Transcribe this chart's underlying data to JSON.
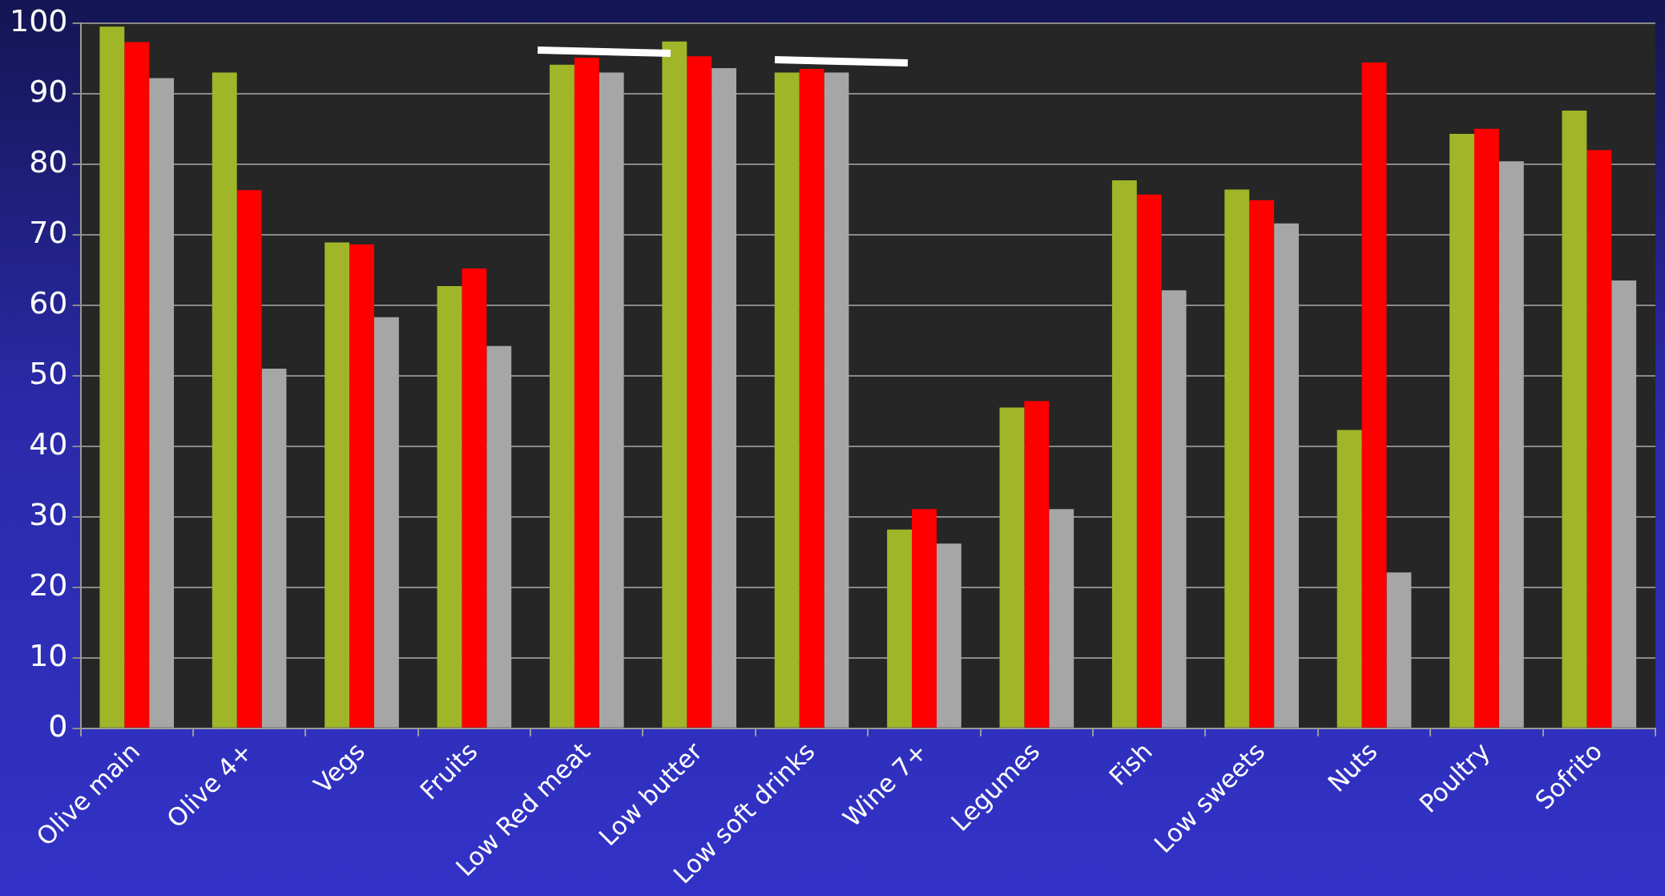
{
  "chart_data": {
    "type": "bar",
    "categories": [
      "Olive main",
      "Olive 4+",
      "Vegs",
      "Fruits",
      "Low Red meat",
      "Low butter",
      "Low soft drinks",
      "Wine 7+",
      "Legumes",
      "Fish",
      "Low sweets",
      "Nuts",
      "Poultry",
      "Sofrito"
    ],
    "series": [
      {
        "color": "#a0b628",
        "values": [
          99.5,
          93,
          68.9,
          62.7,
          94.1,
          97.4,
          93,
          28.2,
          45.5,
          77.7,
          76.4,
          42.3,
          84.3,
          87.6
        ]
      },
      {
        "color": "#ff0000",
        "values": [
          97.3,
          76.3,
          68.6,
          65.2,
          95.1,
          95.3,
          93.5,
          31.1,
          46.4,
          75.7,
          74.9,
          94.4,
          85,
          82
        ]
      },
      {
        "color": "#a6a6a6",
        "values": [
          92.2,
          51,
          58.3,
          54.2,
          93,
          93.6,
          93,
          26.2,
          31.1,
          62.1,
          71.6,
          22.1,
          80.4,
          63.5
        ]
      }
    ],
    "ylim": [
      0,
      100
    ],
    "yticks": [
      0,
      10,
      20,
      30,
      40,
      50,
      60,
      70,
      80,
      90,
      100
    ],
    "grid": "y",
    "legend": false
  }
}
